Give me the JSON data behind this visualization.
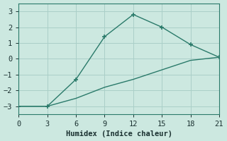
{
  "line1_x": [
    0,
    3,
    6,
    9,
    12,
    15,
    18,
    21
  ],
  "line1_y": [
    -3.0,
    -3.0,
    -1.3,
    1.4,
    2.8,
    2.0,
    0.9,
    0.1
  ],
  "line2_x": [
    0,
    3,
    6,
    9,
    12,
    15,
    18,
    21
  ],
  "line2_y": [
    -3.0,
    -3.0,
    -2.5,
    -1.8,
    -1.3,
    -0.7,
    -0.1,
    0.1
  ],
  "color": "#2a7a6a",
  "xlabel": "Humidex (Indice chaleur)",
  "xlim": [
    0,
    21
  ],
  "ylim": [
    -3.5,
    3.5
  ],
  "xticks": [
    0,
    3,
    6,
    9,
    12,
    15,
    18,
    21
  ],
  "yticks": [
    -3,
    -2,
    -1,
    0,
    1,
    2,
    3
  ],
  "bg_color": "#cce8e0",
  "grid_color": "#aacfc8",
  "spine_color": "#2a7a6a",
  "tick_color": "#1a3030",
  "label_fontsize": 7.5,
  "tick_fontsize": 7.5
}
